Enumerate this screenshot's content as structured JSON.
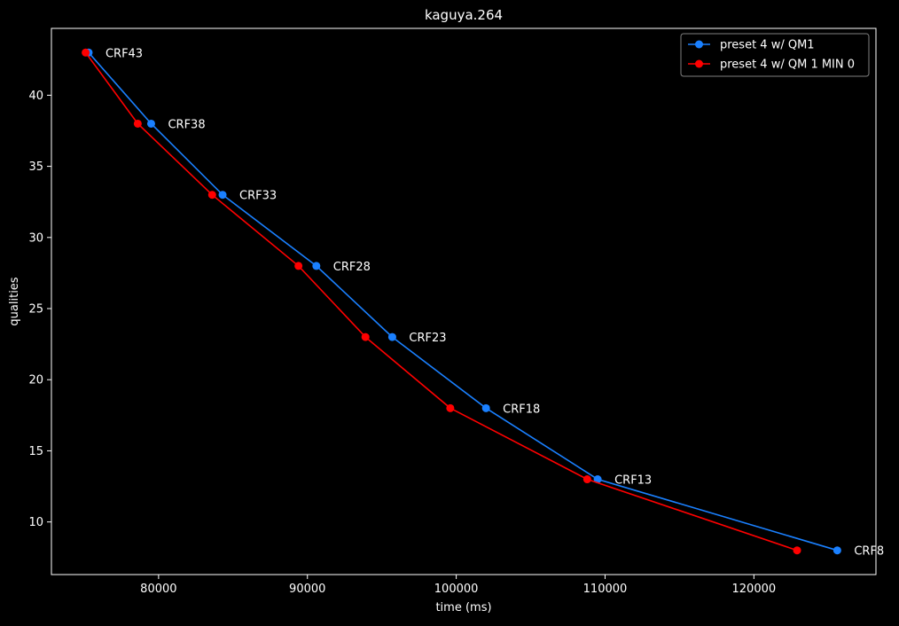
{
  "chart_data": {
    "type": "line",
    "title": "kaguya.264",
    "xlabel": "time (ms)",
    "ylabel": "qualities",
    "xlim": [
      72800,
      128200
    ],
    "ylim": [
      6.3,
      44.7
    ],
    "xticks": [
      80000,
      90000,
      100000,
      110000,
      120000
    ],
    "yticks": [
      10,
      15,
      20,
      25,
      30,
      35,
      40
    ],
    "grid": false,
    "legend_position": "top-right",
    "series": [
      {
        "name": "preset 4 w/ QM1",
        "color": "#1a80ff",
        "marker": "circle",
        "x": [
          75300,
          79500,
          84300,
          90600,
          95700,
          102000,
          109500,
          125600
        ],
        "y": [
          43,
          38,
          33,
          28,
          23,
          18,
          13,
          8
        ]
      },
      {
        "name": "preset 4 w/ QM 1 MIN 0",
        "color": "#ff0000",
        "marker": "circle",
        "x": [
          75100,
          78600,
          83600,
          89400,
          93900,
          99600,
          108800,
          122900
        ],
        "y": [
          43,
          38,
          33,
          28,
          23,
          18,
          13,
          8
        ]
      }
    ],
    "annotations": [
      {
        "text": "CRF43",
        "x": 75300,
        "y": 43
      },
      {
        "text": "CRF38",
        "x": 79500,
        "y": 38
      },
      {
        "text": "CRF33",
        "x": 84300,
        "y": 33
      },
      {
        "text": "CRF28",
        "x": 90600,
        "y": 28
      },
      {
        "text": "CRF23",
        "x": 95700,
        "y": 23
      },
      {
        "text": "CRF18",
        "x": 102000,
        "y": 18
      },
      {
        "text": "CRF13",
        "x": 109500,
        "y": 13
      },
      {
        "text": "CRF8",
        "x": 125600,
        "y": 8
      }
    ]
  }
}
